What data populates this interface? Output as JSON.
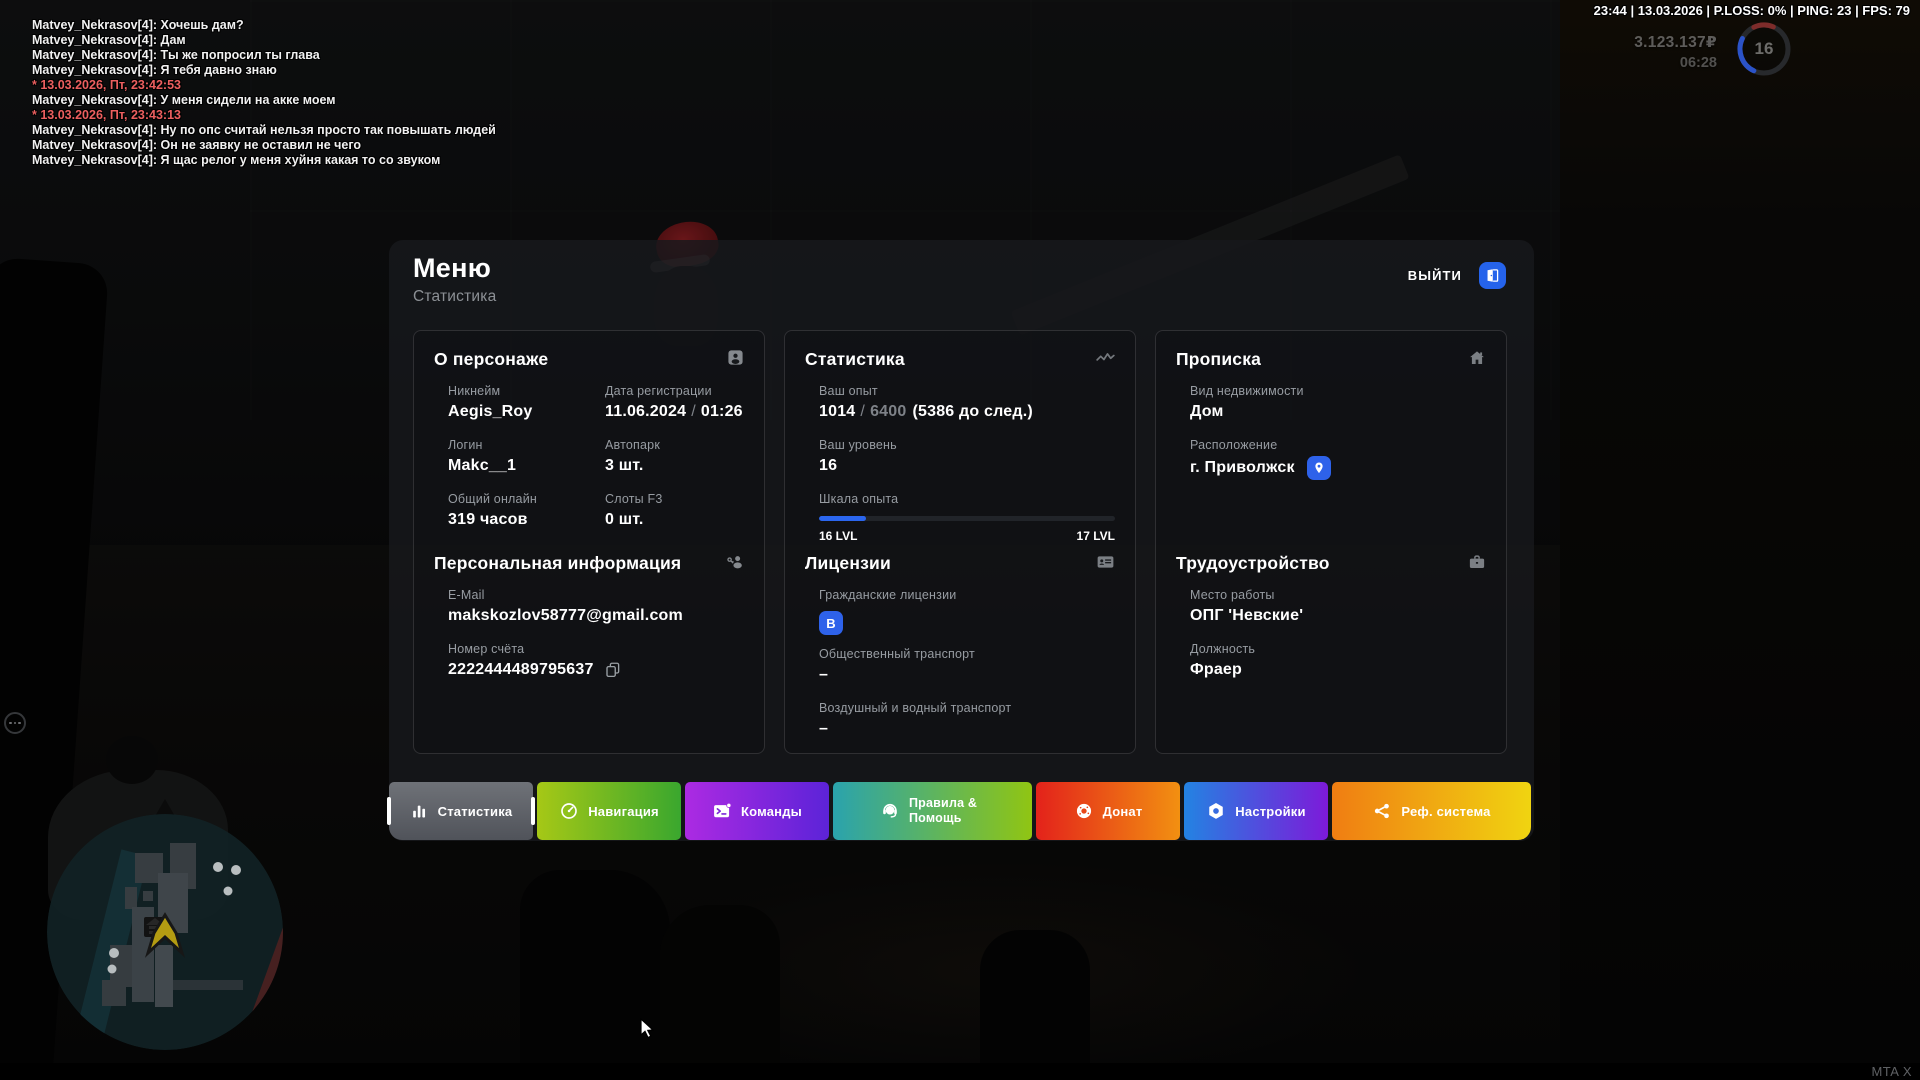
{
  "hud": {
    "status_bar": {
      "text": "23:44 | 13.03.2026 | P.LOSS: 0% | PING: 23 | FPS: 79"
    },
    "wallet": {
      "money": "3.123.137₽",
      "time": "06:28",
      "level": "16"
    },
    "chat": {
      "lines": [
        {
          "text": "Matvey_Nekrasov[4]: Хочешь дам?",
          "style": "normal"
        },
        {
          "text": "Matvey_Nekrasov[4]: Дам",
          "style": "normal"
        },
        {
          "text": "Matvey_Nekrasov[4]: Ты же попросил ты глава",
          "style": "normal"
        },
        {
          "text": "Matvey_Nekrasov[4]: Я тебя давно знаю",
          "style": "normal"
        },
        {
          "text": "* 13.03.2026, Пт, 23:42:53",
          "style": "timestamp"
        },
        {
          "text": "Matvey_Nekrasov[4]: У меня сидели на акке моем",
          "style": "normal"
        },
        {
          "text": "* 13.03.2026, Пт, 23:43:13",
          "style": "timestamp"
        },
        {
          "text": "Matvey_Nekrasov[4]: Ну по опс считай нельзя просто так повышать людей",
          "style": "normal"
        },
        {
          "text": "Matvey_Nekrasov[4]: Он не заявку не оставил не чего",
          "style": "normal"
        },
        {
          "text": "Matvey_Nekrasov[4]: Я щас релог у меня хуйня какая то со звуком",
          "style": "normal"
        }
      ],
      "timestamp_color": "#ec5f5f"
    },
    "watermark": "MTA X",
    "colors": {
      "accent_blue": "#2563eb",
      "progress_blue": "#2b66ee"
    }
  },
  "menu": {
    "title": "Меню",
    "subtitle": "Статистика",
    "exit_label": "ВЫЙТИ",
    "about": {
      "title": "О персонаже",
      "nickname_label": "Никнейм",
      "nickname": "Aegis_Roy",
      "reg_label": "Дата регистрации",
      "reg_date": "11.06.2024",
      "reg_sep": "/",
      "reg_time": "01:26",
      "login_label": "Логин",
      "login": "Makc__1",
      "autopark_label": "Автопарк",
      "autopark": "3 шт.",
      "online_label": "Общий онлайн",
      "online": "319 часов",
      "slots_label": "Слоты F3",
      "slots": "0 шт."
    },
    "personal": {
      "title": "Персональная информация",
      "email_label": "E-Mail",
      "email": "makskozlov58777@gmail.com",
      "account_label": "Номер счёта",
      "account": "2222444489795637"
    },
    "stats": {
      "title": "Статистика",
      "exp_label": "Ваш опыт",
      "exp_current": "1014",
      "exp_sep": "/",
      "exp_total": "6400",
      "exp_note": "(5386 до след.)",
      "level_label": "Ваш уровень",
      "level": "16",
      "scale_label": "Шкала опыта",
      "progress_percent": 15.8,
      "level_from": "16 LVL",
      "level_to": "17 LVL"
    },
    "licenses": {
      "title": "Лицензии",
      "civil_label": "Гражданские лицензии",
      "civil_badge": "B",
      "public_label": "Общественный транспорт",
      "public_value": "–",
      "air_label": "Воздушный и водный транспорт",
      "air_value": "–"
    },
    "residence": {
      "title": "Прописка",
      "type_label": "Вид недвижимости",
      "type": "Дом",
      "location_label": "Расположение",
      "location": "г. Приволжск"
    },
    "job": {
      "title": "Трудоустройство",
      "place_label": "Место работы",
      "place": "ОПГ 'Невские'",
      "position_label": "Должность",
      "position": "Фраер"
    },
    "tabs": [
      {
        "label": "Статистика",
        "active": true,
        "gradient": {
          "dir": "180deg",
          "from": "#6f7278",
          "to": "#50535a"
        }
      },
      {
        "label": "Навигация",
        "gradient": {
          "dir": "90deg",
          "from": "#a6c816",
          "to": "#3aa72e"
        }
      },
      {
        "label": "Команды",
        "gradient": {
          "dir": "90deg",
          "from": "#ac2ae2",
          "to": "#5c23d8"
        }
      },
      {
        "label": "Правила & Помощь",
        "gradient": {
          "dir": "90deg",
          "from": "#2aa3ad",
          "to": "#90c513"
        }
      },
      {
        "label": "Донат",
        "gradient": {
          "dir": "90deg",
          "from": "#e3221b",
          "to": "#f29011"
        }
      },
      {
        "label": "Настройки",
        "gradient": {
          "dir": "90deg",
          "from": "#2383e2",
          "to": "#7d1ad9"
        }
      },
      {
        "label": "Реф. система",
        "gradient": {
          "dir": "90deg",
          "from": "#f07d12",
          "to": "#f0d411"
        }
      }
    ]
  }
}
